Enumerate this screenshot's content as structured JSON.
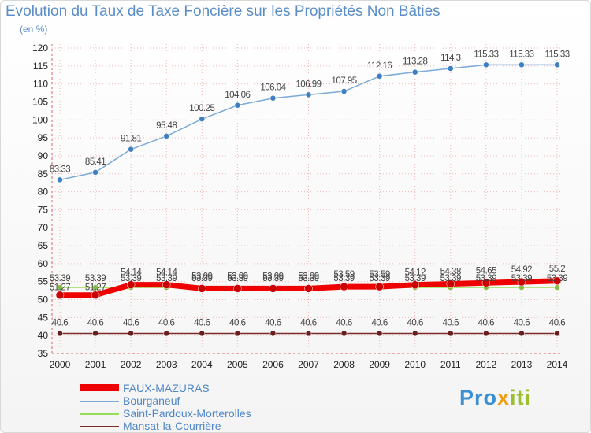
{
  "title": "Evolution du Taux de Taxe Foncière sur les Propriétés Non Bâties",
  "unit_label": "(en %)",
  "logo": {
    "text": "Proxiti",
    "parts": [
      "Pro",
      "x",
      "iti"
    ]
  },
  "colors": {
    "title": "#5b8ec7",
    "faux": "#ee0000",
    "bourganeuf": "#7baad8",
    "saint": "#99dd55",
    "mansat": "#7a2a2a",
    "grid": "#e06060"
  },
  "chart_data": {
    "type": "line",
    "title": "Evolution du Taux de Taxe Foncière sur les Propriétés Non Bâties",
    "ylabel": "(en %)",
    "xlabel": "",
    "ylim": [
      35,
      120
    ],
    "ytick_step": 5,
    "yticks": [
      "35",
      "40",
      "45",
      "50",
      "55",
      "60",
      "65",
      "70",
      "75",
      "80",
      "85",
      "90",
      "95",
      "100",
      "105",
      "110",
      "115",
      "120"
    ],
    "categories": [
      "2000",
      "2001",
      "2002",
      "2003",
      "2004",
      "2005",
      "2006",
      "2007",
      "2008",
      "2009",
      "2010",
      "2011",
      "2012",
      "2013",
      "2014"
    ],
    "series": [
      {
        "name": "FAUX-MAZURAS",
        "color": "#ee0000",
        "values": [
          51.27,
          51.27,
          54.14,
          54.14,
          53.09,
          53.09,
          53.09,
          53.09,
          53.59,
          53.59,
          54.12,
          54.38,
          54.65,
          54.92,
          55.2
        ],
        "labels": [
          "51.27",
          "51.27",
          "54.14",
          "54.14",
          "53.09",
          "53.09",
          "53.09",
          "53.09",
          "53.59",
          "53.59",
          "54.12",
          "54.38",
          "54.65",
          "54.92",
          "55.2"
        ]
      },
      {
        "name": "Bourganeuf",
        "color": "#7baad8",
        "values": [
          83.33,
          85.41,
          91.81,
          95.48,
          100.25,
          104.06,
          106.04,
          106.99,
          107.95,
          112.16,
          113.28,
          114.3,
          115.33,
          115.33,
          115.33
        ],
        "labels": [
          "83.33",
          "85.41",
          "91.81",
          "95.48",
          "100.25",
          "104.06",
          "106.04",
          "106.99",
          "107.95",
          "112.16",
          "113.28",
          "114.3",
          "115.33",
          "115.33",
          "115.33"
        ]
      },
      {
        "name": "Saint-Pardoux-Morterolles",
        "color": "#99dd55",
        "values": [
          53.39,
          53.39,
          53.39,
          53.39,
          53.39,
          53.39,
          53.39,
          53.39,
          53.39,
          53.39,
          53.39,
          53.39,
          53.39,
          53.39,
          53.39
        ],
        "labels": [
          "53.39",
          "53.39",
          "53.39",
          "53.39",
          "53.39",
          "53.39",
          "53.39",
          "53.39",
          "53.39",
          "53.39",
          "53.39",
          "53.39",
          "53.39",
          "53.39",
          "53.39"
        ]
      },
      {
        "name": "Mansat-la-Courrière",
        "color": "#7a2a2a",
        "values": [
          40.6,
          40.6,
          40.6,
          40.6,
          40.6,
          40.6,
          40.6,
          40.6,
          40.6,
          40.6,
          40.6,
          40.6,
          40.6,
          40.6,
          40.6
        ],
        "labels": [
          "40.6",
          "40.6",
          "40.6",
          "40.6",
          "40.6",
          "40.6",
          "40.6",
          "40.6",
          "40.6",
          "40.6",
          "40.6",
          "40.6",
          "40.6",
          "40.6",
          "40.6"
        ]
      }
    ]
  }
}
